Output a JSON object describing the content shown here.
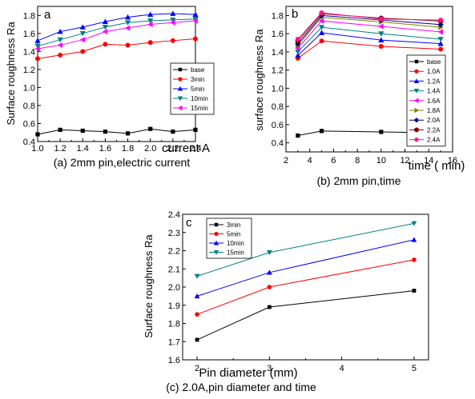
{
  "chart_data": [
    {
      "type": "line",
      "panel_label": "a",
      "caption": "(a) 2mm pin,electric current",
      "xlabel": "current A",
      "ylabel": "Surface roughness Ra",
      "xlim": [
        1.0,
        2.4
      ],
      "ylim": [
        0.4,
        1.9
      ],
      "xticks": [
        "1.0",
        "1.2",
        "1.4",
        "1.6",
        "1.8",
        "2.0",
        "2.2",
        "2.4"
      ],
      "yticks": [
        "0.4",
        "0.6",
        "0.8",
        "1.0",
        "1.2",
        "1.4",
        "1.6",
        "1.8"
      ],
      "x": [
        1.0,
        1.2,
        1.4,
        1.6,
        1.8,
        2.0,
        2.2,
        2.4
      ],
      "legend_position": "right",
      "series": [
        {
          "name": "base",
          "color": "#000000",
          "marker": "square",
          "values": [
            0.48,
            0.53,
            0.52,
            0.51,
            0.49,
            0.54,
            0.51,
            0.53
          ]
        },
        {
          "name": "3min",
          "color": "#ff0000",
          "marker": "circle",
          "values": [
            1.32,
            1.36,
            1.4,
            1.48,
            1.47,
            1.5,
            1.52,
            1.54
          ]
        },
        {
          "name": "5min",
          "color": "#0000ff",
          "marker": "triangle-up",
          "values": [
            1.52,
            1.62,
            1.67,
            1.73,
            1.78,
            1.81,
            1.82,
            1.81
          ]
        },
        {
          "name": "10min",
          "color": "#008080",
          "marker": "triangle-down",
          "values": [
            1.46,
            1.53,
            1.6,
            1.67,
            1.72,
            1.74,
            1.75,
            1.76
          ]
        },
        {
          "name": "15min",
          "color": "#ff00ff",
          "marker": "triangle-left",
          "values": [
            1.43,
            1.47,
            1.53,
            1.62,
            1.66,
            1.7,
            1.72,
            1.74
          ]
        }
      ]
    },
    {
      "type": "line",
      "panel_label": "b",
      "caption": "(b) 2mm pin,time",
      "xlabel": "time (   min)",
      "ylabel": "surface roughness Ra",
      "xlim": [
        2,
        16
      ],
      "ylim": [
        0.3,
        1.9
      ],
      "xticks": [
        "2",
        "4",
        "6",
        "8",
        "10",
        "12",
        "14",
        "16"
      ],
      "yticks": [
        "0.4",
        "0.6",
        "0.8",
        "1.0",
        "1.2",
        "1.4",
        "1.6",
        "1.8"
      ],
      "x": [
        3,
        5,
        10,
        15
      ],
      "legend_position": "right",
      "series": [
        {
          "name": "base",
          "color": "#000000",
          "marker": "square",
          "values": [
            0.48,
            0.53,
            0.52,
            0.51
          ]
        },
        {
          "name": "1.0A",
          "color": "#ff0000",
          "marker": "circle",
          "values": [
            1.33,
            1.52,
            1.46,
            1.43
          ]
        },
        {
          "name": "1.2A",
          "color": "#0000ff",
          "marker": "triangle-up",
          "values": [
            1.36,
            1.61,
            1.53,
            1.49
          ]
        },
        {
          "name": "1.4A",
          "color": "#008080",
          "marker": "triangle-down",
          "values": [
            1.4,
            1.67,
            1.6,
            1.54
          ]
        },
        {
          "name": "1.6A",
          "color": "#ff00ff",
          "marker": "triangle-left",
          "values": [
            1.44,
            1.74,
            1.68,
            1.62
          ]
        },
        {
          "name": "1.8A",
          "color": "#808000",
          "marker": "triangle-right",
          "values": [
            1.47,
            1.78,
            1.73,
            1.67
          ]
        },
        {
          "name": "2.0A",
          "color": "#000080",
          "marker": "diamond",
          "values": [
            1.49,
            1.8,
            1.75,
            1.7
          ]
        },
        {
          "name": "2.2A",
          "color": "#800000",
          "marker": "hexagon",
          "values": [
            1.52,
            1.82,
            1.77,
            1.74
          ]
        },
        {
          "name": "2.4A",
          "color": "#ff1493",
          "marker": "circle",
          "values": [
            1.54,
            1.83,
            1.76,
            1.75
          ]
        }
      ]
    },
    {
      "type": "line",
      "panel_label": "c",
      "caption": "(c) 2.0A,pin diameter and time",
      "xlabel": "Pin diameter (mm)",
      "ylabel": "Surface roughness Ra",
      "xlim": [
        1.8,
        5.2
      ],
      "ylim": [
        1.6,
        2.4
      ],
      "xticks": [
        "2",
        "3",
        "4",
        "5"
      ],
      "yticks": [
        "1.6",
        "1.7",
        "1.8",
        "1.9",
        "2.0",
        "2.1",
        "2.2",
        "2.3",
        "2.4"
      ],
      "x": [
        2,
        3,
        5
      ],
      "legend_position": "top-left",
      "series": [
        {
          "name": "3min",
          "color": "#000000",
          "marker": "square",
          "values": [
            1.71,
            1.89,
            1.98
          ]
        },
        {
          "name": "5min",
          "color": "#ff0000",
          "marker": "circle",
          "values": [
            1.85,
            2.0,
            2.15
          ]
        },
        {
          "name": "10min",
          "color": "#0000ff",
          "marker": "triangle-up",
          "values": [
            1.95,
            2.08,
            2.26
          ]
        },
        {
          "name": "15min",
          "color": "#008080",
          "marker": "triangle-down",
          "values": [
            2.06,
            2.19,
            2.35
          ]
        }
      ]
    }
  ]
}
